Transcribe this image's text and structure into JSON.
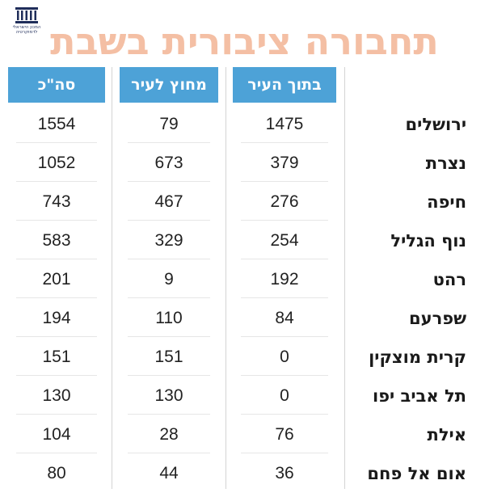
{
  "title": "תחבורה ציבורית בשבת",
  "logo_text": [
    "המכון הישראלי",
    "לדמוקרטיה"
  ],
  "colors": {
    "header_bg": "#4da2d7",
    "title": "#f4bfa4",
    "text": "#222222"
  },
  "columns": [
    "בתוך העיר",
    "מחוץ לעיר",
    "סה\"כ"
  ],
  "rows": [
    {
      "city": "ירושלים",
      "inside": "1475",
      "outside": "79",
      "total": "1554"
    },
    {
      "city": "נצרת",
      "inside": "379",
      "outside": "673",
      "total": "1052"
    },
    {
      "city": "חיפה",
      "inside": "276",
      "outside": "467",
      "total": "743"
    },
    {
      "city": "נוף הגליל",
      "inside": "254",
      "outside": "329",
      "total": "583"
    },
    {
      "city": "רהט",
      "inside": "192",
      "outside": "9",
      "total": "201"
    },
    {
      "city": "שפרעם",
      "inside": "84",
      "outside": "110",
      "total": "194"
    },
    {
      "city": "קרית מוצקין",
      "inside": "0",
      "outside": "151",
      "total": "151"
    },
    {
      "city": "תל אביב יפו",
      "inside": "0",
      "outside": "130",
      "total": "130"
    },
    {
      "city": "אילת",
      "inside": "76",
      "outside": "28",
      "total": "104"
    },
    {
      "city": "אום אל פחם",
      "inside": "36",
      "outside": "44",
      "total": "80"
    }
  ]
}
